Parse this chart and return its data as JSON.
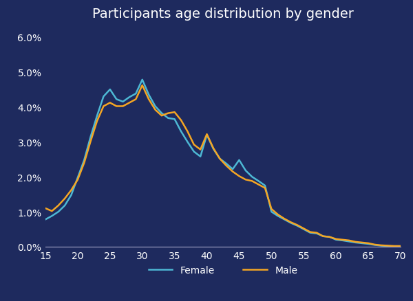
{
  "title": "Participants age distribution by gender",
  "background_color": "#1e2a5e",
  "text_color": "#ffffff",
  "female_color": "#4db8d4",
  "male_color": "#f5a623",
  "x_ticks": [
    15,
    20,
    25,
    30,
    35,
    40,
    45,
    50,
    55,
    60,
    65,
    70
  ],
  "xlim": [
    15,
    70
  ],
  "ylim": [
    0.0,
    0.063
  ],
  "y_ticks": [
    0.0,
    0.01,
    0.02,
    0.03,
    0.04,
    0.05,
    0.06
  ],
  "female_x": [
    15,
    16,
    17,
    18,
    19,
    20,
    21,
    22,
    23,
    24,
    25,
    26,
    27,
    28,
    29,
    30,
    31,
    32,
    33,
    34,
    35,
    36,
    37,
    38,
    39,
    40,
    41,
    42,
    43,
    44,
    45,
    46,
    47,
    48,
    49,
    50,
    51,
    52,
    53,
    54,
    55,
    56,
    57,
    58,
    59,
    60,
    61,
    62,
    63,
    64,
    65,
    66,
    67,
    68,
    69,
    70
  ],
  "female_y": [
    0.0078,
    0.0088,
    0.01,
    0.0118,
    0.0148,
    0.0198,
    0.0248,
    0.0315,
    0.0375,
    0.043,
    0.045,
    0.0422,
    0.0415,
    0.0428,
    0.0438,
    0.0478,
    0.0435,
    0.0402,
    0.0382,
    0.0368,
    0.0365,
    0.033,
    0.03,
    0.0272,
    0.0258,
    0.032,
    0.028,
    0.0252,
    0.0238,
    0.0222,
    0.0248,
    0.0218,
    0.02,
    0.0188,
    0.0175,
    0.01,
    0.0088,
    0.0078,
    0.0068,
    0.006,
    0.005,
    0.004,
    0.0038,
    0.003,
    0.0028,
    0.002,
    0.0018,
    0.0015,
    0.0012,
    0.001,
    0.0008,
    0.0005,
    0.0003,
    0.0002,
    0.0001,
    0.0001
  ],
  "male_x": [
    15,
    16,
    17,
    18,
    19,
    20,
    21,
    22,
    23,
    24,
    25,
    26,
    27,
    28,
    29,
    30,
    31,
    32,
    33,
    34,
    35,
    36,
    37,
    38,
    39,
    40,
    41,
    42,
    43,
    44,
    45,
    46,
    47,
    48,
    49,
    50,
    51,
    52,
    53,
    54,
    55,
    56,
    57,
    58,
    59,
    60,
    61,
    62,
    63,
    64,
    65,
    66,
    67,
    68,
    69,
    70
  ],
  "male_y": [
    0.011,
    0.0102,
    0.0118,
    0.0138,
    0.0162,
    0.0192,
    0.024,
    0.0302,
    0.036,
    0.0402,
    0.0412,
    0.0402,
    0.0402,
    0.0412,
    0.0422,
    0.0462,
    0.0422,
    0.0392,
    0.0375,
    0.0382,
    0.0385,
    0.0362,
    0.033,
    0.0292,
    0.0278,
    0.0322,
    0.0282,
    0.0252,
    0.0232,
    0.0215,
    0.0202,
    0.0192,
    0.0188,
    0.0178,
    0.0168,
    0.0108,
    0.0092,
    0.008,
    0.007,
    0.0062,
    0.0052,
    0.0042,
    0.004,
    0.003,
    0.0028,
    0.0022,
    0.002,
    0.0018,
    0.0014,
    0.0012,
    0.001,
    0.0006,
    0.0004,
    0.0003,
    0.0002,
    0.0002
  ],
  "legend_labels": [
    "Female",
    "Male"
  ],
  "line_width": 1.8,
  "spine_color": "#aaaacc",
  "title_fontsize": 14,
  "tick_fontsize": 10
}
